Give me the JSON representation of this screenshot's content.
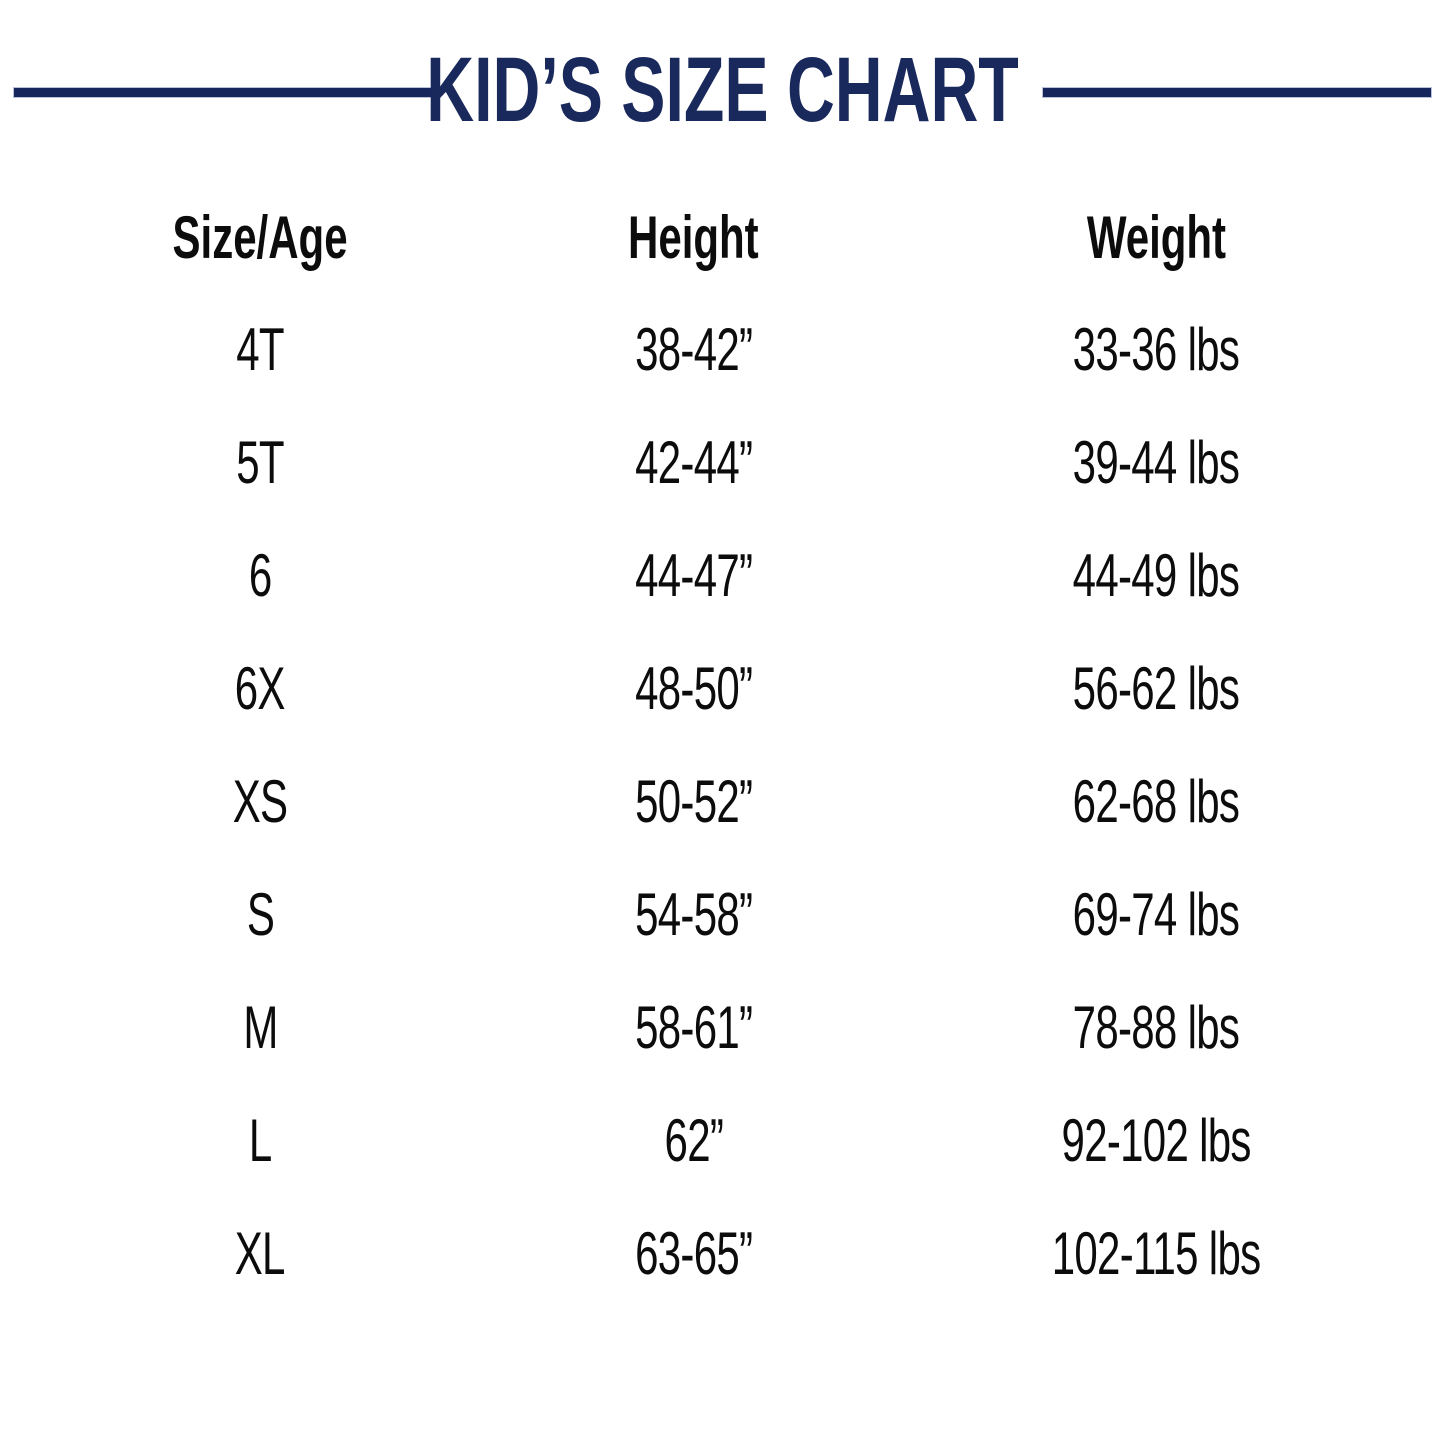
{
  "title": "KID’S SIZE CHART",
  "colors": {
    "accent_navy": "#1a295c",
    "text": "#0c0c0c",
    "background": "#ffffff"
  },
  "chart_data": {
    "type": "table",
    "title": "KID’S SIZE CHART",
    "columns": [
      "Size/Age",
      "Height",
      "Weight"
    ],
    "rows": [
      [
        "4T",
        "38-42”",
        "33-36 lbs"
      ],
      [
        "5T",
        "42-44”",
        "39-44 lbs"
      ],
      [
        "6",
        "44-47”",
        "44-49 lbs"
      ],
      [
        "6X",
        "48-50”",
        "56-62 lbs"
      ],
      [
        "XS",
        "50-52”",
        "62-68 lbs"
      ],
      [
        "S",
        "54-58”",
        "69-74 lbs"
      ],
      [
        "M",
        "58-61”",
        "78-88 lbs"
      ],
      [
        "L",
        "62”",
        "92-102 lbs"
      ],
      [
        "XL",
        "63-65”",
        "102-115 lbs"
      ]
    ],
    "legend": false,
    "grid": false
  }
}
